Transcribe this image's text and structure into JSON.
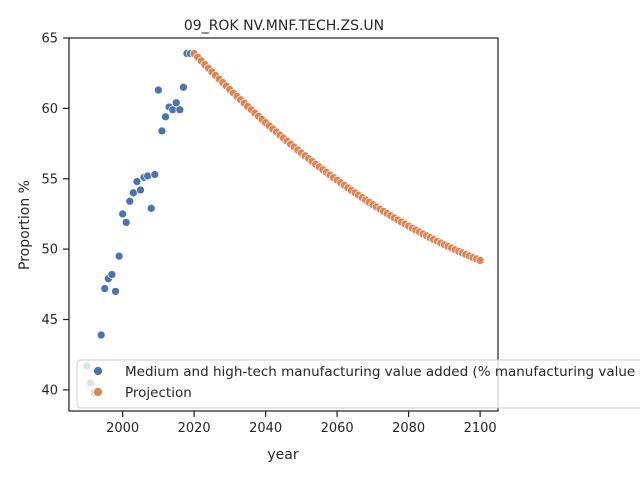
{
  "chart_data": {
    "type": "scatter",
    "title": "09_ROK NV.MNF.TECH.ZS.UN",
    "xlabel": "year",
    "ylabel": "Proportion %",
    "xlim": [
      1985,
      2105
    ],
    "ylim": [
      38.5,
      65
    ],
    "x_ticks": [
      2000,
      2020,
      2040,
      2060,
      2080,
      2100
    ],
    "y_ticks": [
      40,
      45,
      50,
      55,
      60,
      65
    ],
    "grid": false,
    "legend_placement": "lower-left",
    "series": [
      {
        "name": "Medium and high-tech manufacturing value added (% manufacturing value added)",
        "color": "#4c72b0",
        "points": [
          [
            1990,
            41.7
          ],
          [
            1991,
            40.5
          ],
          [
            1992,
            39.8
          ],
          [
            1993,
            39.9
          ],
          [
            1994,
            43.9
          ],
          [
            1995,
            47.2
          ],
          [
            1996,
            47.9
          ],
          [
            1997,
            48.2
          ],
          [
            1998,
            47.0
          ],
          [
            1999,
            49.5
          ],
          [
            2000,
            52.5
          ],
          [
            2001,
            51.9
          ],
          [
            2002,
            53.4
          ],
          [
            2003,
            54.0
          ],
          [
            2004,
            54.8
          ],
          [
            2005,
            54.2
          ],
          [
            2006,
            55.1
          ],
          [
            2007,
            55.2
          ],
          [
            2008,
            52.9
          ],
          [
            2009,
            55.3
          ],
          [
            2010,
            61.3
          ],
          [
            2011,
            58.4
          ],
          [
            2012,
            59.4
          ],
          [
            2013,
            60.1
          ],
          [
            2014,
            59.9
          ],
          [
            2015,
            60.4
          ],
          [
            2016,
            59.9
          ],
          [
            2017,
            61.5
          ],
          [
            2018,
            63.9
          ],
          [
            2019,
            63.9
          ],
          [
            2020,
            63.9
          ]
        ]
      },
      {
        "name": "Projection",
        "color": "#dd8452",
        "start_year": 2020,
        "end_year": 2100,
        "start_value": 63.9,
        "end_value": 49.2,
        "curvature": -0.45
      }
    ]
  }
}
